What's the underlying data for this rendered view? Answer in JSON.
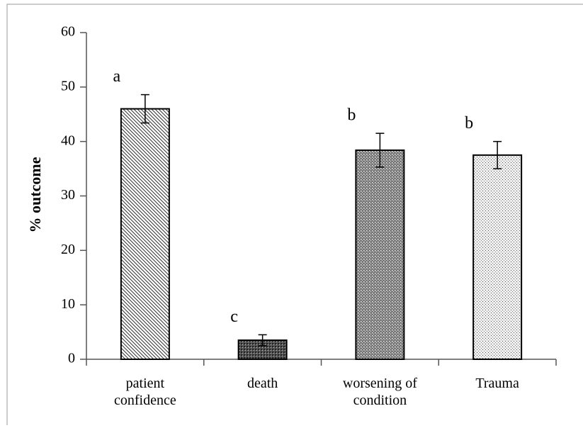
{
  "chart_data": {
    "type": "bar",
    "ylabel": "% outcome",
    "categories": [
      "patient confidence",
      "death",
      "worsening of condition",
      "Trauma"
    ],
    "values": [
      46,
      3.5,
      38.4,
      37.5
    ],
    "errors": [
      2.6,
      1,
      3.1,
      2.5
    ],
    "annotations": [
      "a",
      "c",
      "b",
      "b"
    ],
    "ylim": [
      0,
      60
    ],
    "yticks": [
      0,
      10,
      20,
      30,
      40,
      50,
      60
    ],
    "grid": false
  }
}
